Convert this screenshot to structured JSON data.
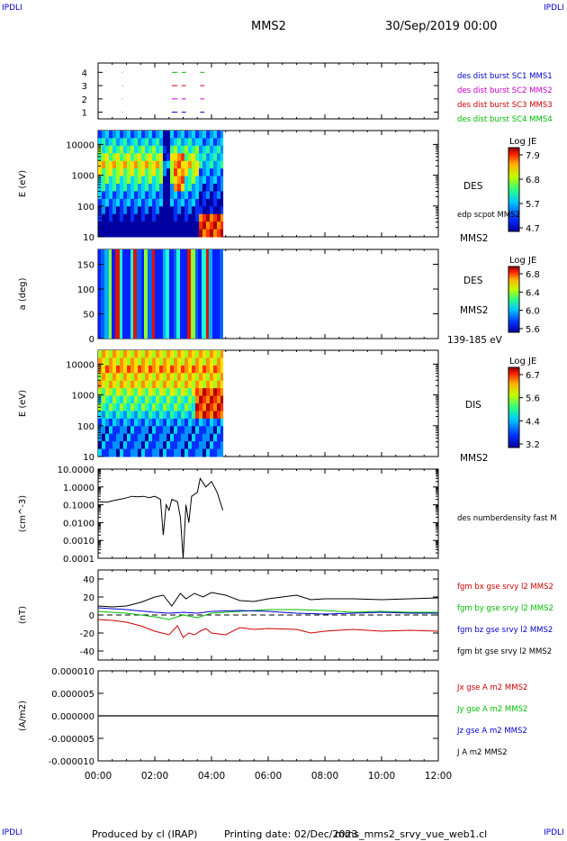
{
  "header": {
    "corner_label": "IPDLI",
    "title": "MMS2",
    "date": "30/Sep/2019 00:00"
  },
  "footer": {
    "produced": "Produced by cl (IRAP)",
    "printing": "Printing date: 02/Dec/2023",
    "file": "mms_mms2_srvy_vue_web1.cl"
  },
  "colors": {
    "blue": "#0000cc",
    "magenta": "#cc00cc",
    "red": "#cc0000",
    "green": "#00bb00",
    "black": "#000000"
  },
  "chart_data": [
    {
      "type": "line",
      "panel": "burst",
      "yticks": [
        "4",
        "3",
        "2",
        "1"
      ],
      "series": [
        {
          "name": "des dist burst SC1 MMS1",
          "color": "blue"
        },
        {
          "name": "des dist burst SC2 MMS2",
          "color": "magenta"
        },
        {
          "name": "des dist burst SC3 MMS3",
          "color": "red"
        },
        {
          "name": "des dist burst SC4 MMS4",
          "color": "green"
        }
      ],
      "bursts_hours": [
        [
          0.85,
          0.87
        ],
        [
          2.6,
          2.8
        ],
        [
          2.95,
          3.1
        ],
        [
          3.6,
          3.75
        ]
      ]
    },
    {
      "type": "heatmap",
      "panel": "des-energy",
      "ylabel": "E (eV)",
      "yscale": "log",
      "yticks": [
        "10000",
        "1000",
        "100",
        "10"
      ],
      "right_labels": [
        "DES",
        "edp scpot MMS2",
        "MMS2"
      ],
      "colorbar": {
        "title": "Log JE",
        "ticks": [
          "7.9",
          "6.8",
          "5.7",
          "4.7"
        ]
      },
      "data_end_hour": 4.4
    },
    {
      "type": "heatmap",
      "panel": "des-pitch",
      "ylabel": "a (deg)",
      "yticks": [
        "150",
        "100",
        "50",
        "0"
      ],
      "ylim": [
        0,
        180
      ],
      "right_labels": [
        "DES",
        "MMS2",
        "139-185 eV"
      ],
      "colorbar": {
        "title": "Log JE",
        "ticks": [
          "6.8",
          "6.4",
          "6.0",
          "5.6"
        ]
      },
      "data_end_hour": 4.4
    },
    {
      "type": "heatmap",
      "panel": "dis-energy",
      "ylabel": "E (eV)",
      "yscale": "log",
      "yticks": [
        "10000",
        "1000",
        "100",
        "10"
      ],
      "right_labels": [
        "DIS",
        "MMS2"
      ],
      "colorbar": {
        "title": "Log JE",
        "ticks": [
          "6.7",
          "5.6",
          "4.4",
          "3.2"
        ]
      },
      "data_end_hour": 4.4
    },
    {
      "type": "line",
      "panel": "density",
      "ylabel": "(cm^-3)",
      "yscale": "log",
      "yticks": [
        "10.0000",
        "1.0000",
        "0.1000",
        "0.0100",
        "0.0010",
        "0.0001"
      ],
      "series": [
        {
          "name": "des numberdensity fast M",
          "color": "black",
          "x": [
            0.0,
            0.3,
            0.6,
            0.9,
            1.2,
            1.4,
            1.6,
            1.8,
            2.0,
            2.2,
            2.3,
            2.4,
            2.5,
            2.6,
            2.8,
            2.9,
            3.0,
            3.1,
            3.2,
            3.3,
            3.5,
            3.6,
            3.8,
            4.0,
            4.2,
            4.4
          ],
          "y": [
            0.15,
            0.14,
            0.18,
            0.22,
            0.3,
            0.28,
            0.3,
            0.25,
            0.3,
            0.2,
            0.002,
            0.1,
            0.05,
            0.2,
            0.15,
            0.02,
            0.0001,
            0.1,
            0.01,
            0.3,
            0.5,
            3.0,
            1.0,
            2.0,
            0.5,
            0.05
          ]
        }
      ]
    },
    {
      "type": "line",
      "panel": "fgm",
      "ylabel": "(nT)",
      "yticks": [
        "40",
        "20",
        "0",
        "-20",
        "-40"
      ],
      "ylim": [
        -50,
        50
      ],
      "series": [
        {
          "name": "fgm bx gse srvy l2 MMS2",
          "color": "red",
          "x": [
            0,
            0.5,
            1,
            1.5,
            2,
            2.5,
            2.8,
            3,
            3.2,
            3.4,
            3.6,
            3.8,
            4,
            4.5,
            5,
            5.5,
            6,
            7,
            7.5,
            8,
            9,
            10,
            11,
            12
          ],
          "y": [
            -5,
            -6,
            -8,
            -12,
            -18,
            -22,
            -12,
            -25,
            -20,
            -22,
            -18,
            -15,
            -20,
            -22,
            -14,
            -16,
            -15,
            -16,
            -20,
            -18,
            -16,
            -18,
            -17,
            -18
          ]
        },
        {
          "name": "fgm by gse srvy l2 MMS2",
          "color": "green",
          "x": [
            0,
            1,
            2,
            2.5,
            3,
            3.5,
            4,
            5,
            6,
            7,
            8,
            9,
            10,
            11,
            12
          ],
          "y": [
            4,
            2,
            -2,
            -5,
            0,
            -3,
            2,
            4,
            6,
            6,
            5,
            3,
            4,
            3,
            3
          ]
        },
        {
          "name": "fgm bz gse srvy l2 MMS2",
          "color": "blue",
          "x": [
            0,
            1,
            2,
            2.5,
            3,
            3.5,
            4,
            5,
            6,
            7,
            8,
            9,
            10,
            11,
            12
          ],
          "y": [
            8,
            6,
            3,
            2,
            3,
            2,
            4,
            5,
            4,
            2,
            1,
            2,
            3,
            2,
            2
          ]
        },
        {
          "name": "fgm bt gse srvy l2 MMS2",
          "color": "black",
          "x": [
            0,
            0.5,
            1,
            1.5,
            2,
            2.3,
            2.6,
            2.9,
            3.1,
            3.4,
            3.7,
            4,
            4.5,
            5,
            5.5,
            6,
            6.5,
            7,
            7.5,
            8,
            9,
            10,
            11,
            12
          ],
          "y": [
            10,
            9,
            10,
            14,
            20,
            22,
            10,
            24,
            18,
            24,
            20,
            25,
            22,
            16,
            15,
            18,
            20,
            22,
            17,
            18,
            18,
            17,
            18,
            19
          ]
        }
      ]
    },
    {
      "type": "line",
      "panel": "current",
      "ylabel": "(A/m2)",
      "yticks": [
        "0.000010",
        "0.000005",
        "0.000000",
        "-0.000005",
        "-0.000010"
      ],
      "ylim": [
        -1e-05,
        1e-05
      ],
      "series": [
        {
          "name": "Jx gse A m2 MMS2",
          "color": "red"
        },
        {
          "name": "Jy gse A m2 MMS2",
          "color": "green"
        },
        {
          "name": "Jz gse A m2 MMS2",
          "color": "blue"
        },
        {
          "name": "J A m2 MMS2",
          "color": "black",
          "x": [
            0,
            12
          ],
          "y": [
            0,
            0
          ]
        }
      ]
    }
  ],
  "xaxis": {
    "ticks": [
      "00:00",
      "02:00",
      "04:00",
      "06:00",
      "08:00",
      "10:00",
      "12:00"
    ],
    "range_hours": [
      0,
      12
    ]
  }
}
